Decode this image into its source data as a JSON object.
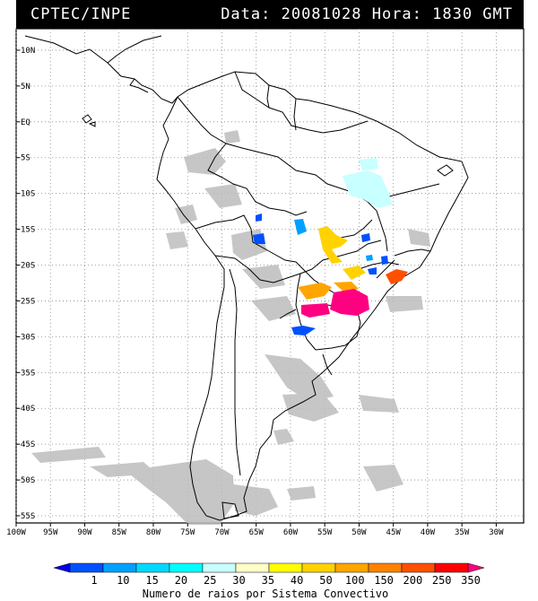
{
  "header": {
    "left": "CPTEC/INPE",
    "right": "Data: 20081028 Hora: 1830 GMT"
  },
  "map": {
    "lon_range": [
      -100,
      -26
    ],
    "lat_range": [
      -56,
      13
    ],
    "lon_ticks": [
      "100W",
      "95W",
      "90W",
      "85W",
      "80W",
      "75W",
      "70W",
      "65W",
      "60W",
      "55W",
      "50W",
      "45W",
      "40W",
      "35W",
      "30W"
    ],
    "lat_ticks": [
      "10N",
      "5N",
      "EQ",
      "5S",
      "10S",
      "15S",
      "20S",
      "25S",
      "30S",
      "35S",
      "40S",
      "45S",
      "50S",
      "55S"
    ],
    "grid": true,
    "land_color": "#ffffff",
    "border_color": "#000000",
    "cloud_color": "#bdbdbd"
  },
  "colorbar": {
    "labels": [
      "1",
      "10",
      "15",
      "20",
      "25",
      "30",
      "35",
      "40",
      "50",
      "100",
      "150",
      "200",
      "250",
      "350"
    ],
    "colors": [
      "#0000e6",
      "#0050ff",
      "#00a0ff",
      "#00d8ff",
      "#00ffff",
      "#c8ffff",
      "#ffffc8",
      "#ffff00",
      "#ffd200",
      "#ffa500",
      "#ff8200",
      "#ff5000",
      "#ff0000",
      "#ff0080"
    ],
    "title": "Numero de raios por Sistema Convectivo"
  }
}
